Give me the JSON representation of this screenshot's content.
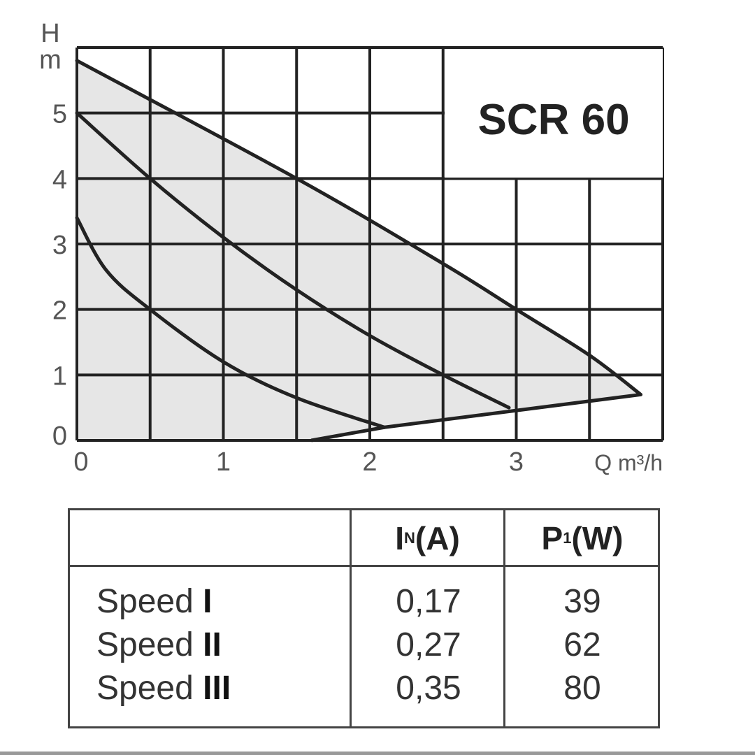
{
  "chart_data": {
    "type": "line",
    "title": "SCR 60",
    "xlabel": "Q m³/h",
    "ylabel": "H m",
    "xlabel_unit": "m³/h",
    "ylabel_top": "H",
    "ylabel_bottom": "m",
    "xlim": [
      0,
      4
    ],
    "ylim": [
      0,
      6
    ],
    "x_ticks": [
      "0",
      "1",
      "2",
      "3"
    ],
    "y_ticks": [
      "0",
      "1",
      "2",
      "3",
      "4",
      "5"
    ],
    "grid": true,
    "series": [
      {
        "name": "Speed I",
        "x": [
          0,
          0.2,
          0.5,
          1.0,
          1.5,
          2.1
        ],
        "y": [
          3.4,
          2.6,
          2.0,
          1.2,
          0.65,
          0.2
        ]
      },
      {
        "name": "Speed II",
        "x": [
          0,
          0.5,
          1.0,
          1.5,
          2.0,
          2.5,
          2.95
        ],
        "y": [
          5.0,
          4.0,
          3.1,
          2.3,
          1.6,
          1.0,
          0.5
        ]
      },
      {
        "name": "Speed III",
        "x": [
          0,
          1.5,
          2.5,
          3.0,
          3.5,
          3.85
        ],
        "y": [
          5.8,
          4.0,
          2.7,
          2.0,
          1.3,
          0.7
        ]
      }
    ],
    "envelope": {
      "x": [
        1.6,
        2.1,
        3.85
      ],
      "y": [
        0,
        0.2,
        0.7
      ]
    }
  },
  "table": {
    "header_current": "I",
    "header_current_sub": "N",
    "header_current_unit": "(A)",
    "header_power": "P",
    "header_power_sub": "1",
    "header_power_unit": "(W)",
    "speed_word": "Speed",
    "rows": [
      {
        "level": "I",
        "current": "0,17",
        "power": "39"
      },
      {
        "level": "II",
        "current": "0,27",
        "power": "62"
      },
      {
        "level": "III",
        "current": "0,35",
        "power": "80"
      }
    ]
  },
  "colors": {
    "fill": "#e6e6e6",
    "grid": "#222222",
    "curve": "#222222"
  }
}
